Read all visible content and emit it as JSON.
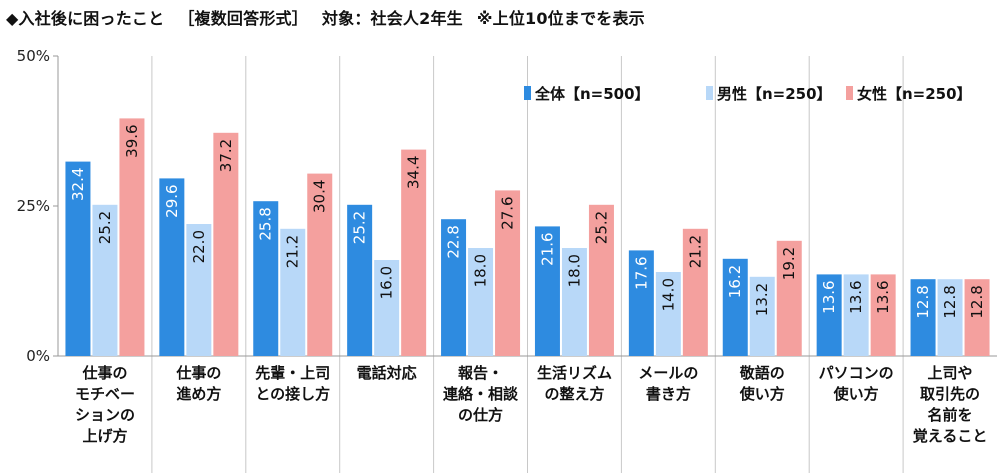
{
  "title": {
    "main": "◆入社後に困ったこと",
    "format": "［複数回答形式］",
    "target": "対象：社会人2年生",
    "note": "※上位10位までを表示"
  },
  "colors": {
    "all": "#2E8BE0",
    "male": "#B8D8F8",
    "female": "#F4A09E",
    "grid": "#c8c8c8",
    "axis": "#999999"
  },
  "chart_data": {
    "type": "bar",
    "title": "入社後に困ったこと",
    "categories": [
      [
        "仕事の",
        "モチベー",
        "ションの",
        "上げ方"
      ],
      [
        "仕事の",
        "進め方"
      ],
      [
        "先輩・上司",
        "との接し方"
      ],
      [
        "電話対応"
      ],
      [
        "報告・",
        "連絡・相談",
        "の仕方"
      ],
      [
        "生活リズム",
        "の整え方"
      ],
      [
        "メールの",
        "書き方"
      ],
      [
        "敬語の",
        "使い方"
      ],
      [
        "パソコンの",
        "使い方"
      ],
      [
        "上司や",
        "取引先の",
        "名前を",
        "覚えること"
      ]
    ],
    "series": [
      {
        "name": "全体【n=500】",
        "color": "#2E8BE0",
        "values": [
          32.4,
          29.6,
          25.8,
          25.2,
          22.8,
          21.6,
          17.6,
          16.2,
          13.6,
          12.8
        ]
      },
      {
        "name": "男性【n=250】",
        "color": "#B8D8F8",
        "values": [
          25.2,
          22.0,
          21.2,
          16.0,
          18.0,
          18.0,
          14.0,
          13.2,
          13.6,
          12.8
        ]
      },
      {
        "name": "女性【n=250】",
        "color": "#F4A09E",
        "values": [
          39.6,
          37.2,
          30.4,
          34.4,
          27.6,
          25.2,
          21.2,
          19.2,
          13.6,
          12.8
        ]
      }
    ],
    "ylim": [
      0,
      50
    ],
    "yticks": [
      "0%",
      "25%",
      "50%"
    ],
    "ytick_values": [
      0,
      25,
      50
    ],
    "legend_position": "top-right",
    "grid": "vertical-category-dividers"
  }
}
